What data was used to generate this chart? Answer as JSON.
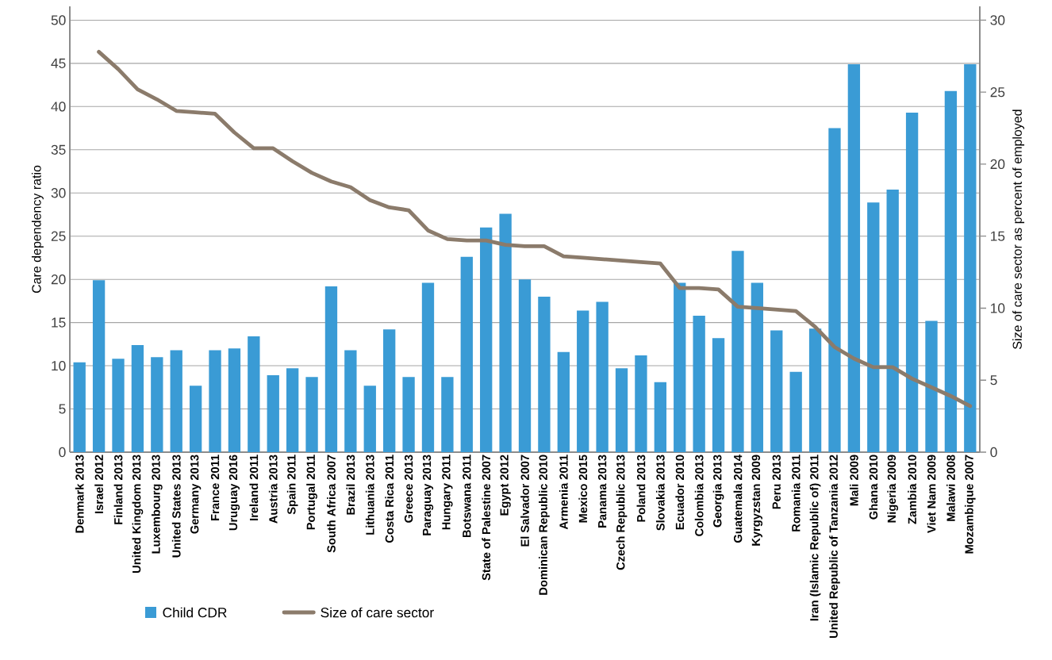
{
  "chart_data": {
    "type": "bar",
    "categories": [
      "Denmark 2013",
      "Israel 2012",
      "Finland 2013",
      "United Kingdom 2013",
      "Luxembourg 2013",
      "United States 2013",
      "Germany 2013",
      "France 2011",
      "Uruguay 2016",
      "Ireland 2011",
      "Austria 2013",
      "Spain 2011",
      "Portugal 2011",
      "South Africa 2007",
      "Brazil 2013",
      "Lithuania 2013",
      "Costa Rica 2011",
      "Greece 2013",
      "Paraguay 2013",
      "Hungary 2011",
      "Botswana 2011",
      "State of Palestine 2007",
      "Egypt 2012",
      "El Salvador 2007",
      "Dominican Republic 2010",
      "Armenia 2011",
      "Mexico 2015",
      "Panama 2013",
      "Czech Republic 2013",
      "Poland 2013",
      "Slovakia 2013",
      "Ecuador 2010",
      "Colombia 2013",
      "Georgia 2013",
      "Guatemala 2014",
      "Kyrgyzstan 2009",
      "Peru 2013",
      "Romania 2011",
      "Iran (Islamic Republic of) 2011",
      "United Republic of Tanzania 2012",
      "Mali 2009",
      "Ghana 2010",
      "Nigeria 2009",
      "Zambia 2010",
      "Viet Nam 2009",
      "Malawi 2008",
      "Mozambique 2007"
    ],
    "series": [
      {
        "name": "Child CDR",
        "color": "#3a9bd5",
        "values": [
          10.4,
          19.9,
          10.8,
          12.4,
          11.0,
          11.8,
          7.7,
          11.8,
          12.0,
          13.4,
          8.9,
          9.7,
          8.7,
          19.2,
          11.8,
          7.7,
          14.2,
          8.7,
          19.6,
          8.7,
          22.6,
          26.0,
          27.6,
          20.0,
          18.0,
          11.6,
          16.4,
          17.4,
          9.7,
          11.2,
          8.1,
          19.6,
          15.8,
          13.2,
          23.3,
          19.6,
          14.1,
          9.3,
          14.3,
          37.5,
          44.9,
          28.9,
          30.4,
          39.3,
          15.2,
          41.8,
          44.9
        ]
      },
      {
        "name": "Size of care sector",
        "type": "line",
        "axis": "y2",
        "color": "#8b7b6b",
        "values": [
          null,
          27.8,
          26.6,
          25.2,
          24.5,
          23.7,
          23.6,
          23.5,
          22.2,
          21.1,
          21.1,
          20.2,
          19.4,
          18.8,
          18.4,
          17.5,
          17.0,
          16.8,
          15.4,
          14.8,
          14.7,
          14.7,
          14.4,
          14.3,
          14.3,
          13.6,
          13.5,
          13.4,
          13.3,
          13.2,
          13.1,
          11.4,
          11.4,
          11.3,
          10.1,
          10.0,
          9.9,
          9.8,
          8.7,
          7.3,
          6.5,
          5.9,
          5.9,
          5.1,
          4.5,
          3.9,
          3.2
        ]
      }
    ],
    "ylabel": "Care dependency ratio",
    "y2label": "Size of care sector as percent of employed",
    "ylim": [
      0,
      51.6
    ],
    "yticks": [
      0,
      5,
      10,
      15,
      20,
      25,
      30,
      35,
      40,
      45,
      50
    ],
    "y2lim": [
      0,
      30.96
    ],
    "y2ticks": [
      0,
      5,
      10,
      15,
      20,
      25,
      30
    ],
    "grid": "y",
    "legend": "bottom"
  }
}
